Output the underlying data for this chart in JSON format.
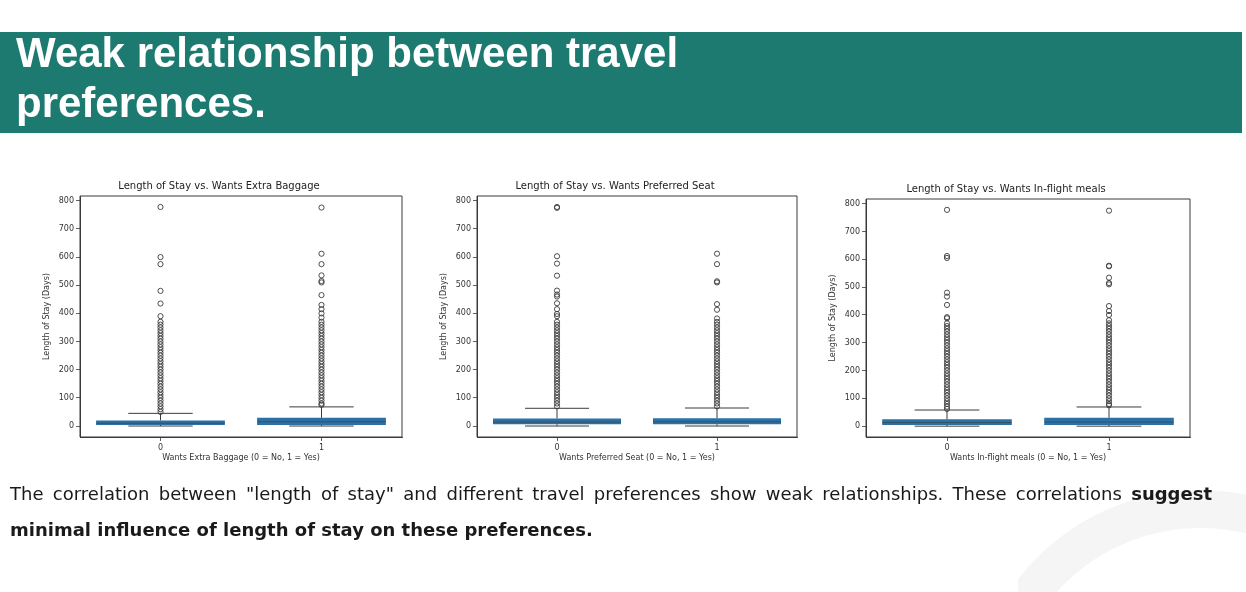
{
  "chart_data": [
    {
      "type": "other",
      "title": "Weak relationship between travel preferences."
    },
    {
      "type": "box",
      "title": "Length of Stay vs. Wants Extra Baggage",
      "xlabel": "Wants Extra Baggage (0 = No, 1 = Yes)",
      "ylabel": "Length of Stay (Days)",
      "categories": [
        "0",
        "1"
      ],
      "color": "#2b71a6",
      "ylim": [
        -39,
        817
      ],
      "yticks": [
        0,
        100,
        200,
        300,
        400,
        500,
        600,
        700,
        800
      ],
      "boxes": [
        {
          "low": 0,
          "q1": 4,
          "median": 10,
          "q3": 20,
          "high": 45,
          "outliers": [
            50,
            60,
            70,
            80,
            90,
            100,
            110,
            120,
            130,
            140,
            150,
            160,
            170,
            180,
            190,
            200,
            210,
            220,
            230,
            240,
            250,
            260,
            270,
            280,
            290,
            300,
            310,
            320,
            330,
            340,
            350,
            360,
            370,
            390,
            435,
            480,
            575,
            600,
            778
          ]
        },
        {
          "low": 0,
          "q1": 4,
          "median": 15,
          "q3": 29,
          "high": 68,
          "outliers": [
            75,
            80,
            90,
            100,
            110,
            120,
            130,
            140,
            150,
            160,
            170,
            180,
            190,
            200,
            210,
            220,
            230,
            240,
            250,
            260,
            270,
            280,
            290,
            300,
            310,
            320,
            330,
            340,
            350,
            360,
            370,
            385,
            400,
            415,
            430,
            465,
            510,
            515,
            535,
            575,
            612,
            776
          ]
        }
      ]
    },
    {
      "type": "box",
      "title": "Length of Stay vs. Wants Preferred Seat",
      "xlabel": "Wants Preferred Seat (0 = No, 1 = Yes)",
      "ylabel": "Length of Stay (Days)",
      "categories": [
        "0",
        "1"
      ],
      "color": "#2b71a6",
      "ylim": [
        -39,
        817
      ],
      "yticks": [
        0,
        100,
        200,
        300,
        400,
        500,
        600,
        700,
        800
      ],
      "boxes": [
        {
          "low": 0,
          "q1": 6,
          "median": 14,
          "q3": 27,
          "high": 63,
          "outliers": [
            70,
            80,
            90,
            100,
            110,
            120,
            130,
            140,
            150,
            160,
            170,
            180,
            190,
            200,
            210,
            220,
            230,
            240,
            250,
            260,
            270,
            280,
            290,
            300,
            310,
            320,
            330,
            340,
            350,
            360,
            370,
            390,
            398,
            415,
            436,
            460,
            467,
            481,
            534,
            577,
            603,
            775,
            778
          ]
        },
        {
          "low": 0,
          "q1": 6,
          "median": 15,
          "q3": 28,
          "high": 64,
          "outliers": [
            70,
            80,
            90,
            100,
            110,
            120,
            130,
            140,
            150,
            160,
            170,
            180,
            190,
            200,
            210,
            220,
            230,
            240,
            250,
            260,
            270,
            280,
            290,
            300,
            310,
            320,
            330,
            340,
            350,
            360,
            370,
            382,
            413,
            433,
            510,
            514,
            575,
            612
          ]
        }
      ]
    },
    {
      "type": "box",
      "title": "Length of Stay vs. Wants In-flight meals",
      "xlabel": "Wants In-flight meals (0 = No, 1 = Yes)",
      "ylabel": "Length of Stay (Days)",
      "categories": [
        "0",
        "1"
      ],
      "color": "#2b71a6",
      "ylim": [
        -39,
        817
      ],
      "yticks": [
        0,
        100,
        200,
        300,
        400,
        500,
        600,
        700,
        800
      ],
      "boxes": [
        {
          "low": 0,
          "q1": 4,
          "median": 13,
          "q3": 25,
          "high": 58,
          "outliers": [
            62,
            70,
            80,
            90,
            100,
            110,
            120,
            130,
            140,
            150,
            160,
            170,
            180,
            190,
            200,
            210,
            220,
            230,
            240,
            250,
            260,
            270,
            280,
            290,
            300,
            310,
            320,
            330,
            340,
            350,
            360,
            370,
            388,
            392,
            436,
            466,
            480,
            605,
            612,
            778
          ]
        },
        {
          "low": 0,
          "q1": 4,
          "median": 15,
          "q3": 30,
          "high": 69,
          "outliers": [
            75,
            80,
            90,
            100,
            110,
            120,
            130,
            140,
            150,
            160,
            170,
            180,
            190,
            200,
            210,
            220,
            230,
            240,
            250,
            260,
            270,
            280,
            290,
            300,
            310,
            320,
            330,
            340,
            350,
            360,
            370,
            381,
            400,
            414,
            432,
            510,
            515,
            534,
            575,
            577,
            775
          ]
        }
      ]
    },
    {
      "type": "other",
      "annotations": [
        "The correlation between \"length of stay\" and different travel preferences show weak relationships. These correlations",
        "suggest",
        "minimal influence of length of stay on these preferences."
      ]
    }
  ]
}
